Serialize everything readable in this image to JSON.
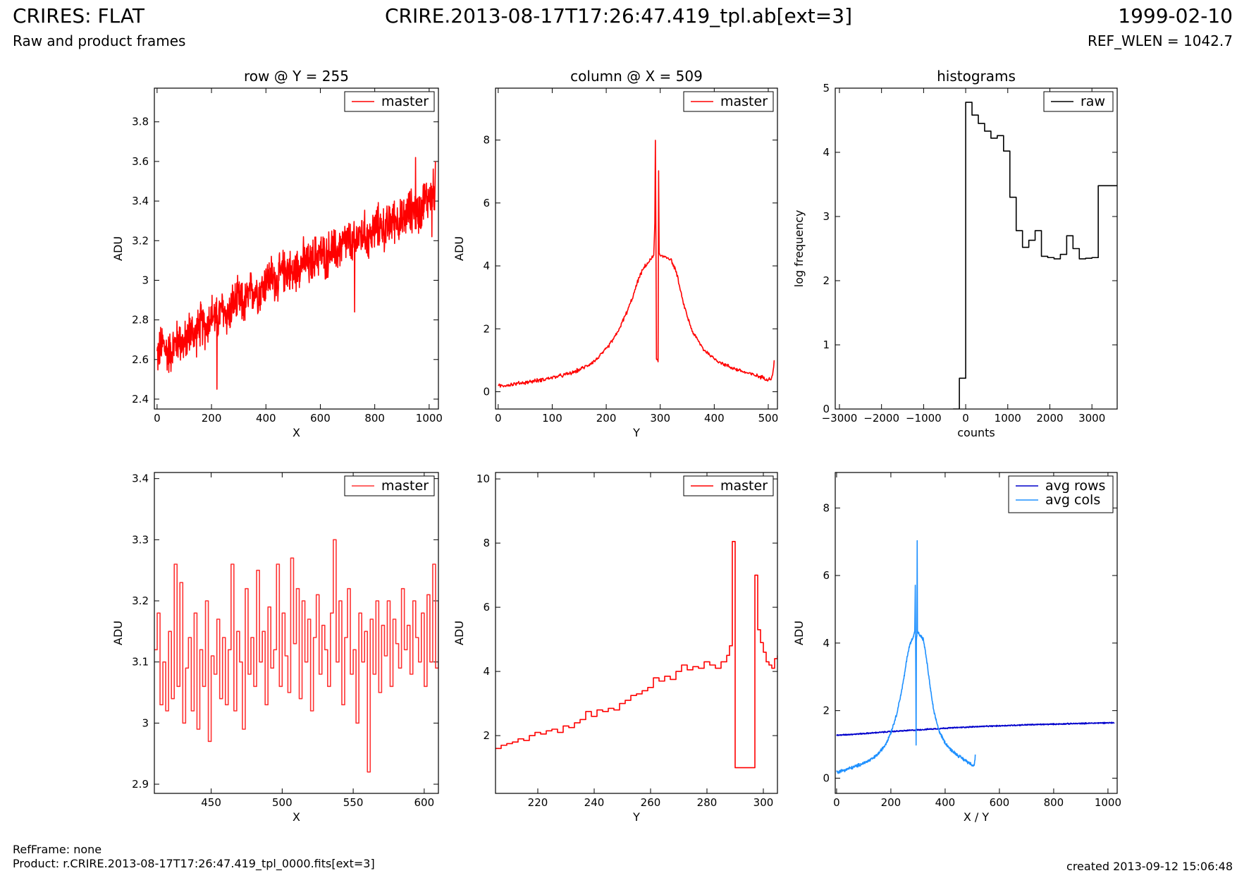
{
  "header": {
    "title_left": "CRIRES: FLAT",
    "subtitle_left": "Raw and product frames",
    "title_center": "CRIRE.2013-08-17T17:26:47.419_tpl.ab[ext=3]",
    "title_right": "1999-02-10",
    "subtitle_right": "REF_WLEN = 1042.7"
  },
  "footer": {
    "ref_frame": "RefFrame: none",
    "product": "Product: r.CRIRE.2013-08-17T17:26:47.419_tpl_0000.fits[ext=3]",
    "created": "created 2013-09-12 15:06:48"
  },
  "chart_data": [
    {
      "type": "line",
      "title": "row @ Y = 255",
      "xlabel": "X",
      "ylabel": "ADU",
      "xlim": [
        -10,
        1034
      ],
      "ylim": [
        2.35,
        3.97
      ],
      "xticks": [
        0,
        200,
        400,
        600,
        800,
        1000
      ],
      "yticks": [
        2.4,
        2.6,
        2.8,
        3.0,
        3.2,
        3.4,
        3.6,
        3.8
      ],
      "grid": false,
      "legend": "top-right",
      "series": [
        {
          "name": "master",
          "color": "#ff0000",
          "style": "line",
          "x": [
            0,
            20,
            40,
            60,
            80,
            100,
            120,
            140,
            160,
            180,
            200,
            220,
            240,
            260,
            280,
            300,
            320,
            340,
            360,
            380,
            400,
            420,
            440,
            460,
            480,
            500,
            520,
            540,
            560,
            580,
            600,
            620,
            640,
            660,
            680,
            700,
            720,
            740,
            760,
            780,
            800,
            820,
            840,
            860,
            880,
            900,
            920,
            940,
            960,
            980,
            1000,
            1023
          ],
          "y": [
            2.62,
            2.68,
            2.63,
            2.66,
            2.71,
            2.67,
            2.75,
            2.72,
            2.78,
            2.76,
            2.83,
            2.8,
            2.85,
            2.82,
            2.88,
            2.9,
            2.87,
            2.93,
            2.96,
            2.94,
            3.0,
            3.02,
            2.99,
            3.04,
            3.06,
            3.03,
            3.08,
            3.1,
            3.07,
            3.12,
            3.14,
            3.11,
            3.16,
            3.14,
            3.18,
            3.2,
            3.17,
            3.22,
            3.24,
            3.21,
            3.26,
            3.28,
            3.25,
            3.3,
            3.31,
            3.29,
            3.34,
            3.36,
            3.33,
            3.4,
            3.42,
            3.46
          ],
          "spikes": [
            {
              "x": 220,
              "y": 2.45
            },
            {
              "x": 726,
              "y": 2.84
            },
            {
              "x": 950,
              "y": 3.62
            },
            {
              "x": 1010,
              "y": 3.22
            },
            {
              "x": 1023,
              "y": 3.6
            }
          ],
          "noise_amplitude": 0.09
        }
      ]
    },
    {
      "type": "line",
      "title": "column @ X = 509",
      "xlabel": "Y",
      "ylabel": "ADU",
      "xlim": [
        -5,
        517
      ],
      "ylim": [
        -0.55,
        9.65
      ],
      "xticks": [
        0,
        100,
        200,
        300,
        400,
        500
      ],
      "yticks": [
        0,
        2,
        4,
        6,
        8
      ],
      "grid": false,
      "legend": "top-right",
      "series": [
        {
          "name": "master",
          "color": "#ff0000",
          "style": "line",
          "x": [
            0,
            20,
            40,
            60,
            80,
            100,
            120,
            140,
            160,
            180,
            200,
            220,
            240,
            250,
            260,
            270,
            280,
            285,
            288,
            290,
            291,
            292,
            293,
            294,
            296,
            297,
            298,
            300,
            310,
            320,
            330,
            340,
            350,
            360,
            380,
            400,
            420,
            440,
            460,
            480,
            500,
            505,
            508,
            510,
            511
          ],
          "y": [
            0.18,
            0.22,
            0.27,
            0.32,
            0.38,
            0.45,
            0.52,
            0.62,
            0.78,
            1.0,
            1.35,
            1.85,
            2.6,
            3.05,
            3.6,
            3.95,
            4.15,
            4.25,
            4.35,
            5.4,
            8.05,
            5.0,
            1.0,
            1.0,
            1.0,
            7.0,
            4.4,
            4.3,
            4.3,
            4.2,
            3.8,
            3.0,
            2.4,
            1.9,
            1.35,
            1.05,
            0.85,
            0.72,
            0.6,
            0.5,
            0.4,
            0.42,
            0.55,
            0.75,
            1.0
          ],
          "noise_amplitude": 0.05
        }
      ]
    },
    {
      "type": "line",
      "title": "histograms",
      "xlabel": "counts",
      "ylabel": "log frequency",
      "xlim": [
        -3100,
        3600
      ],
      "ylim": [
        0,
        5
      ],
      "xticks": [
        -3000,
        -2000,
        -1000,
        0,
        1000,
        2000,
        3000
      ],
      "yticks": [
        0,
        1,
        2,
        3,
        4,
        5
      ],
      "grid": false,
      "legend": "top-right",
      "series": [
        {
          "name": "raw",
          "color": "#000000",
          "style": "steps",
          "x": [
            -300,
            -150,
            0,
            150,
            300,
            450,
            600,
            750,
            900,
            1050,
            1200,
            1350,
            1500,
            1650,
            1800,
            1950,
            2100,
            2250,
            2400,
            2550,
            2700,
            2850,
            3000,
            3150,
            3300,
            3450,
            3600
          ],
          "y": [
            0,
            0.48,
            4.78,
            4.58,
            4.45,
            4.33,
            4.22,
            4.26,
            4.02,
            3.3,
            2.78,
            2.52,
            2.63,
            2.78,
            2.38,
            2.36,
            2.34,
            2.41,
            2.7,
            2.5,
            2.34,
            2.35,
            2.36,
            3.48,
            3.48,
            3.48,
            3.48
          ]
        }
      ]
    },
    {
      "type": "line",
      "title": "",
      "xlabel": "X",
      "ylabel": "ADU",
      "xlim": [
        410,
        610
      ],
      "ylim": [
        2.885,
        3.41
      ],
      "xticks": [
        450,
        500,
        550,
        600
      ],
      "yticks": [
        2.9,
        3.0,
        3.1,
        3.2,
        3.3,
        3.4
      ],
      "grid": false,
      "legend": "top-right",
      "series": [
        {
          "name": "master",
          "color": "#ff3333",
          "style": "steps",
          "x": [
            410,
            412,
            414,
            416,
            418,
            420,
            422,
            424,
            426,
            428,
            430,
            432,
            434,
            436,
            438,
            440,
            442,
            444,
            446,
            448,
            450,
            452,
            454,
            456,
            458,
            460,
            462,
            464,
            466,
            468,
            470,
            472,
            474,
            476,
            478,
            480,
            482,
            484,
            486,
            488,
            490,
            492,
            494,
            496,
            498,
            500,
            502,
            504,
            506,
            508,
            510,
            512,
            514,
            516,
            518,
            520,
            522,
            524,
            526,
            528,
            530,
            532,
            534,
            536,
            538,
            540,
            542,
            544,
            546,
            548,
            550,
            552,
            554,
            556,
            558,
            560,
            562,
            564,
            566,
            568,
            570,
            572,
            574,
            576,
            578,
            580,
            582,
            584,
            586,
            588,
            590,
            592,
            594,
            596,
            598,
            600,
            602,
            604,
            606,
            608,
            610
          ],
          "y": [
            3.12,
            3.18,
            3.03,
            3.1,
            3.02,
            3.15,
            3.04,
            3.26,
            3.06,
            3.23,
            3.0,
            3.09,
            3.14,
            3.02,
            3.18,
            2.99,
            3.12,
            3.06,
            3.2,
            2.97,
            3.11,
            3.08,
            3.17,
            3.04,
            3.14,
            3.03,
            3.12,
            3.26,
            3.02,
            3.15,
            3.1,
            2.99,
            3.22,
            3.08,
            3.14,
            3.06,
            3.25,
            3.1,
            3.15,
            3.03,
            3.19,
            3.09,
            3.12,
            3.26,
            3.06,
            3.18,
            3.11,
            3.05,
            3.27,
            3.13,
            3.22,
            3.04,
            3.2,
            3.1,
            3.17,
            3.02,
            3.14,
            3.21,
            3.08,
            3.16,
            3.12,
            3.06,
            3.18,
            3.3,
            3.1,
            3.2,
            3.03,
            3.14,
            3.22,
            3.08,
            3.12,
            3.0,
            3.18,
            3.1,
            3.15,
            2.92,
            3.17,
            3.08,
            3.2,
            3.05,
            3.16,
            3.11,
            3.2,
            3.06,
            3.17,
            3.13,
            3.09,
            3.22,
            3.12,
            3.16,
            3.08,
            3.2,
            3.14,
            3.1,
            3.18,
            3.06,
            3.21,
            3.1,
            3.26,
            3.09,
            3.2
          ]
        }
      ]
    },
    {
      "type": "line",
      "title": "",
      "xlabel": "Y",
      "ylabel": "ADU",
      "xlim": [
        205,
        305
      ],
      "ylim": [
        0.2,
        10.2
      ],
      "xticks": [
        220,
        240,
        260,
        280,
        300
      ],
      "yticks": [
        2,
        4,
        6,
        8,
        10
      ],
      "grid": false,
      "legend": "top-right",
      "series": [
        {
          "name": "master",
          "color": "#ff0000",
          "style": "steps",
          "x": [
            205,
            207,
            209,
            211,
            213,
            215,
            217,
            219,
            221,
            223,
            225,
            227,
            229,
            231,
            233,
            235,
            237,
            239,
            241,
            243,
            245,
            247,
            249,
            251,
            253,
            255,
            257,
            259,
            261,
            263,
            265,
            267,
            269,
            271,
            273,
            275,
            277,
            279,
            281,
            283,
            285,
            287,
            288,
            289,
            290,
            291,
            292,
            293,
            294,
            295,
            296,
            297,
            298,
            299,
            300,
            301,
            302,
            303,
            304,
            305
          ],
          "y": [
            1.6,
            1.7,
            1.75,
            1.8,
            1.9,
            1.85,
            2.0,
            2.1,
            2.05,
            2.15,
            2.2,
            2.1,
            2.3,
            2.25,
            2.4,
            2.5,
            2.75,
            2.6,
            2.8,
            2.75,
            2.85,
            2.8,
            3.0,
            3.1,
            3.25,
            3.3,
            3.4,
            3.5,
            3.8,
            3.7,
            3.85,
            3.75,
            4.0,
            4.2,
            4.05,
            4.15,
            4.1,
            4.3,
            4.2,
            4.1,
            4.3,
            4.5,
            4.8,
            8.05,
            1.0,
            1.0,
            1.0,
            1.0,
            1.0,
            1.0,
            1.0,
            7.0,
            5.3,
            4.9,
            4.6,
            4.3,
            4.2,
            4.1,
            4.4,
            4.5
          ]
        }
      ]
    },
    {
      "type": "line",
      "title": "",
      "xlabel": "X / Y",
      "ylabel": "ADU",
      "xlim": [
        -5,
        1034
      ],
      "ylim": [
        -0.45,
        9.05
      ],
      "xticks": [
        0,
        200,
        400,
        600,
        800,
        1000
      ],
      "yticks": [
        0,
        2,
        4,
        6,
        8
      ],
      "grid": false,
      "legend": "top-right",
      "series": [
        {
          "name": "avg rows",
          "color": "#0000cc",
          "style": "line",
          "x": [
            0,
            100,
            200,
            300,
            400,
            500,
            600,
            700,
            800,
            900,
            1000,
            1023
          ],
          "y": [
            1.27,
            1.32,
            1.38,
            1.43,
            1.48,
            1.52,
            1.55,
            1.58,
            1.6,
            1.62,
            1.64,
            1.64
          ],
          "noise_amplitude": 0.015
        },
        {
          "name": "avg cols",
          "color": "#1e90ff",
          "style": "line",
          "x": [
            0,
            20,
            40,
            60,
            80,
            100,
            120,
            140,
            160,
            180,
            200,
            220,
            240,
            250,
            260,
            270,
            280,
            285,
            288,
            290,
            291,
            292,
            293,
            294,
            296,
            297,
            298,
            300,
            310,
            320,
            330,
            340,
            350,
            360,
            380,
            400,
            420,
            440,
            460,
            480,
            500,
            505,
            508,
            510,
            511
          ],
          "y": [
            0.18,
            0.22,
            0.27,
            0.32,
            0.38,
            0.45,
            0.52,
            0.62,
            0.78,
            1.0,
            1.35,
            1.85,
            2.6,
            3.05,
            3.6,
            3.95,
            4.15,
            4.25,
            4.35,
            5.7,
            4.3,
            3.0,
            1.0,
            4.1,
            4.2,
            7.0,
            4.4,
            4.3,
            4.2,
            4.1,
            3.6,
            3.0,
            2.4,
            1.9,
            1.35,
            1.05,
            0.85,
            0.72,
            0.6,
            0.5,
            0.4,
            0.38,
            0.42,
            0.55,
            0.7
          ],
          "noise_amplitude": 0.04
        }
      ]
    }
  ]
}
